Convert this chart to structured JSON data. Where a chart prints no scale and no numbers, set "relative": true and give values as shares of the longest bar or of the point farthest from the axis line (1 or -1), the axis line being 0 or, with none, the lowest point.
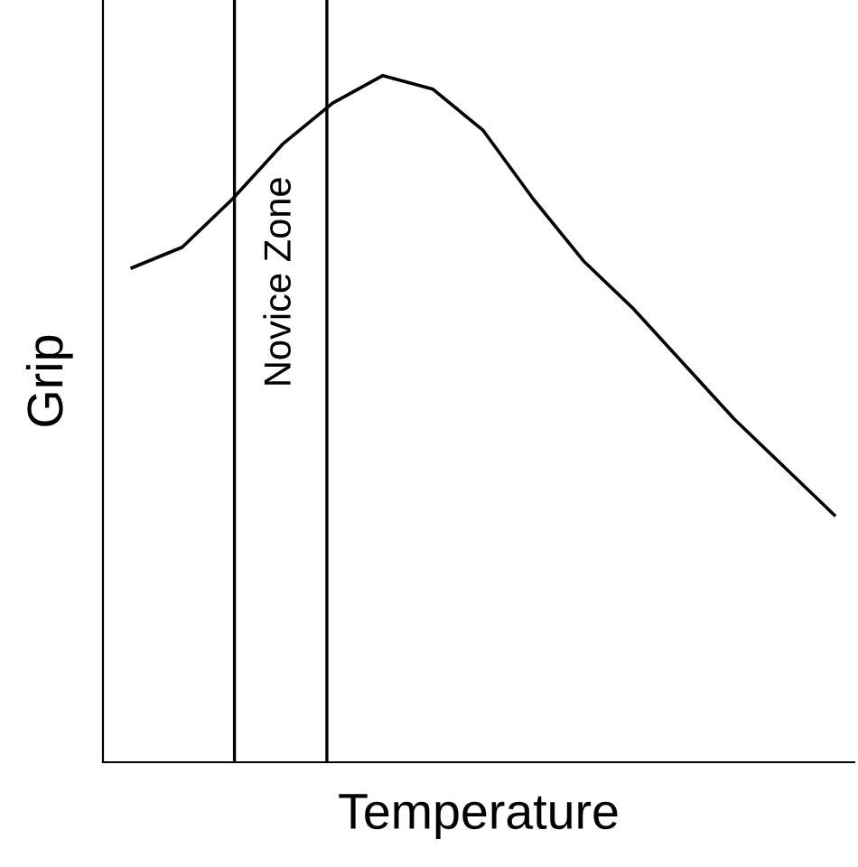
{
  "chart_data": {
    "type": "line",
    "relative": true,
    "xlabel": "Temperature",
    "ylabel": "Grip",
    "categories": [
      null,
      null,
      null,
      null,
      null,
      null,
      null,
      null,
      null,
      null,
      null,
      null,
      null,
      null,
      null
    ],
    "series": [
      {
        "color": "#000000",
        "values": [
          0.72,
          0.75,
          0.82,
          0.9,
          0.96,
          1.0,
          0.98,
          0.92,
          0.82,
          0.73,
          0.66,
          0.58,
          0.5,
          0.43,
          0.36
        ]
      }
    ],
    "annotations": [
      "Novice Zone"
    ],
    "legend": false,
    "marker": "none",
    "line_style": "solid"
  }
}
